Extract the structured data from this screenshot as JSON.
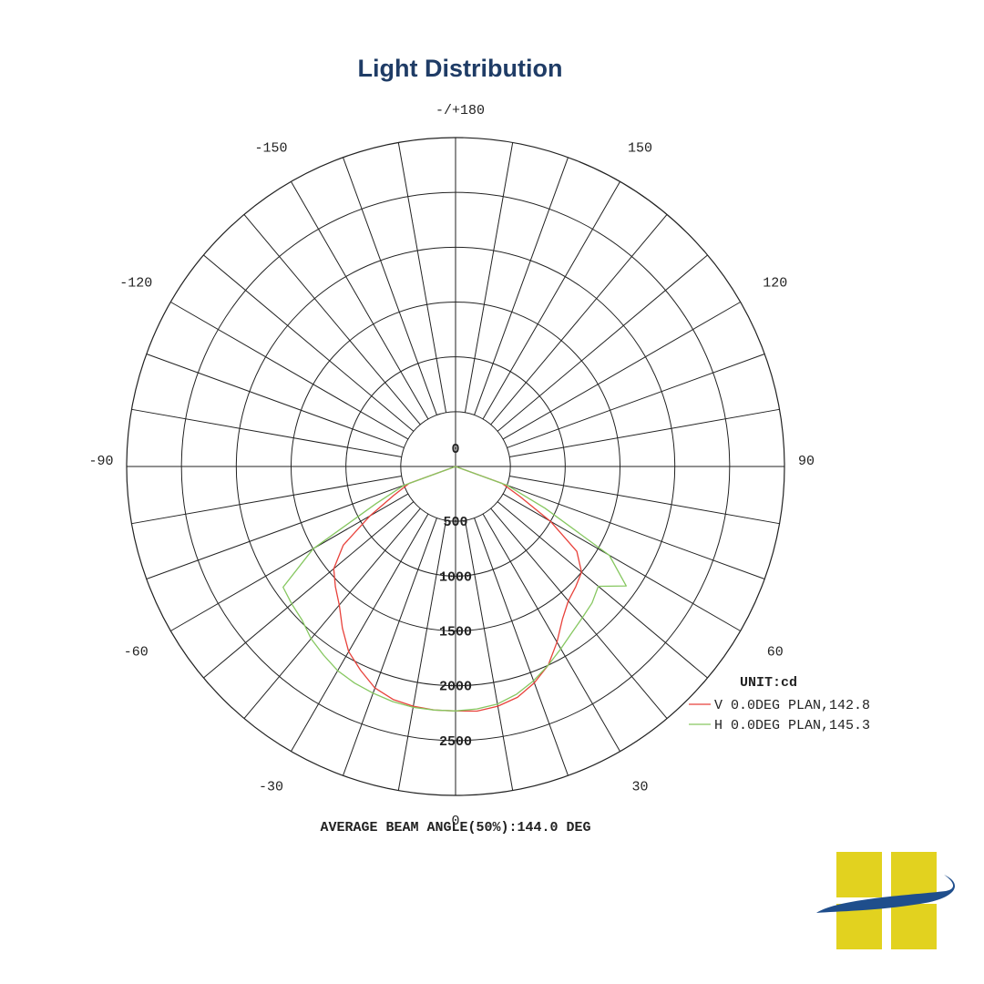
{
  "title": "Light Distribution",
  "chart_data": {
    "type": "polar",
    "unit_label": "UNIT:cd",
    "angle_labels": [
      {
        "deg": 180,
        "text": "-/+180"
      },
      {
        "deg": -150,
        "text": "-150"
      },
      {
        "deg": 150,
        "text": "150"
      },
      {
        "deg": -120,
        "text": "-120"
      },
      {
        "deg": 120,
        "text": "120"
      },
      {
        "deg": -90,
        "text": "-90"
      },
      {
        "deg": 90,
        "text": "90"
      },
      {
        "deg": -60,
        "text": "-60"
      },
      {
        "deg": 60,
        "text": "60"
      },
      {
        "deg": -30,
        "text": "-30"
      },
      {
        "deg": 30,
        "text": "30"
      },
      {
        "deg": 0,
        "text": "0"
      }
    ],
    "radial_ticks": [
      0,
      500,
      1000,
      1500,
      2000,
      2500
    ],
    "r_max": 3000,
    "angle_step": 10,
    "series": [
      {
        "name": "V 0.0DEG PLAN,142.8",
        "color": "#e8413a",
        "angles": [
          -70,
          -65,
          -60,
          -55,
          -50,
          -45,
          -40,
          -35,
          -30,
          -25,
          -20,
          -15,
          -10,
          -5,
          0,
          5,
          10,
          15,
          20,
          25,
          30,
          35,
          40,
          45,
          50,
          55,
          60,
          65,
          70
        ],
        "values": [
          450,
          620,
          900,
          1250,
          1450,
          1550,
          1650,
          1800,
          1950,
          2050,
          2150,
          2200,
          2220,
          2230,
          2230,
          2240,
          2220,
          2180,
          2100,
          2000,
          1850,
          1700,
          1600,
          1550,
          1500,
          1350,
          1000,
          650,
          450
        ]
      },
      {
        "name": "H 0.0DEG PLAN,145.3",
        "color": "#86c760",
        "angles": [
          -70,
          -65,
          -60,
          -55,
          -50,
          -45,
          -40,
          -35,
          -30,
          -25,
          -20,
          -15,
          -10,
          -5,
          0,
          5,
          10,
          15,
          20,
          25,
          30,
          35,
          40,
          45,
          50,
          55,
          60,
          65,
          70
        ],
        "values": [
          500,
          800,
          1500,
          1920,
          1950,
          1980,
          2050,
          2100,
          2150,
          2180,
          2200,
          2220,
          2230,
          2230,
          2230,
          2220,
          2200,
          2150,
          2080,
          2000,
          1920,
          1850,
          1800,
          1760,
          1700,
          1900,
          1620,
          900,
          500
        ]
      }
    ],
    "footer": "AVERAGE BEAM ANGLE(50%):144.0 DEG"
  },
  "logo": {
    "name": "company-logo",
    "colors": {
      "squares": "#e2d21f",
      "swoosh": "#1f4e8c"
    }
  }
}
